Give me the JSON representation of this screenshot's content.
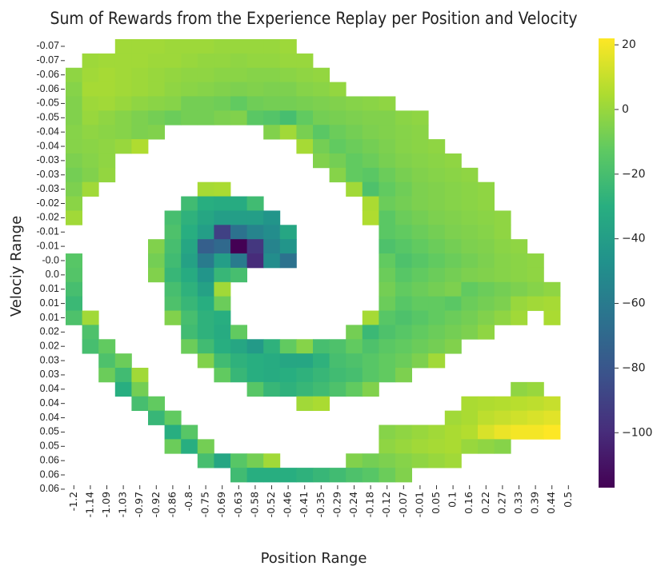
{
  "chart_data": {
    "type": "heatmap",
    "title": "Sum of Rewards from the Experience Replay per Position and Velocity",
    "x_label": "Position Range",
    "y_label": "Velociy Range",
    "x_labels": [
      "-1.2",
      "-1.14",
      "-1.09",
      "-1.03",
      "-0.97",
      "-0.92",
      "-0.86",
      "-0.8",
      "-0.75",
      "-0.69",
      "-0.63",
      "-0.58",
      "-0.52",
      "-0.46",
      "-0.41",
      "-0.35",
      "-0.29",
      "-0.24",
      "-0.18",
      "-0.12",
      "-0.07",
      "-0.01",
      "0.05",
      "0.1",
      "0.16",
      "0.22",
      "0.27",
      "0.33",
      "0.39",
      "0.44",
      "0.5"
    ],
    "y_labels": [
      "-0.07",
      "-0.07",
      "-0.06",
      "-0.06",
      "-0.05",
      "-0.05",
      "-0.04",
      "-0.04",
      "-0.03",
      "-0.03",
      "-0.03",
      "-0.02",
      "-0.02",
      "-0.01",
      "-0.01",
      "-0.0",
      "0.0",
      "0.01",
      "0.01",
      "0.01",
      "0.02",
      "0.02",
      "0.03",
      "0.03",
      "0.04",
      "0.04",
      "0.04",
      "0.05",
      "0.05",
      "0.06",
      "0.06",
      "0.06"
    ],
    "values": [
      [
        null,
        null,
        null,
        2,
        2,
        2,
        1,
        1,
        1,
        0,
        0,
        0,
        0,
        1,
        null,
        null,
        null,
        null,
        null,
        null,
        null,
        null,
        null,
        null,
        null,
        null,
        null,
        null,
        null,
        null
      ],
      [
        null,
        1,
        2,
        2,
        2,
        1,
        1,
        0,
        -1,
        -1,
        -2,
        -1,
        -1,
        0,
        0,
        null,
        null,
        null,
        null,
        null,
        null,
        null,
        null,
        null,
        null,
        null,
        null,
        null,
        null,
        null
      ],
      [
        -2,
        2,
        3,
        2,
        1,
        0,
        -1,
        -2,
        -2,
        -3,
        -3,
        -4,
        -4,
        -3,
        -2,
        -1,
        null,
        null,
        null,
        null,
        null,
        null,
        null,
        null,
        null,
        null,
        null,
        null,
        null,
        null
      ],
      [
        -4,
        3,
        3,
        2,
        1,
        0,
        -2,
        -3,
        -4,
        -5,
        -6,
        -5,
        -6,
        -6,
        -4,
        -3,
        -1,
        null,
        null,
        null,
        null,
        null,
        null,
        null,
        null,
        null,
        null,
        null,
        null,
        null
      ],
      [
        -5,
        1,
        2,
        0,
        -2,
        -3,
        -4,
        -8,
        -8,
        -9,
        -12,
        -9,
        -8,
        -8,
        -7,
        -6,
        -5,
        -4,
        -3,
        -2,
        null,
        null,
        null,
        null,
        null,
        null,
        null,
        null,
        null,
        null
      ],
      [
        -5,
        0,
        -2,
        -4,
        -6,
        -8,
        -10,
        -8,
        -8,
        -6,
        -5,
        -14,
        -16,
        -20,
        -12,
        -8,
        -7,
        -6,
        -5,
        -5,
        -3,
        -2,
        null,
        null,
        null,
        null,
        null,
        null,
        null,
        null
      ],
      [
        -4,
        -2,
        -3,
        -4,
        -6,
        -5,
        null,
        null,
        null,
        null,
        null,
        null,
        -5,
        2,
        -7,
        -14,
        -10,
        -8,
        -6,
        -5,
        -4,
        -3,
        null,
        null,
        null,
        null,
        null,
        null,
        null,
        null
      ],
      [
        -4,
        -3,
        -2,
        0,
        5,
        null,
        null,
        null,
        null,
        null,
        null,
        null,
        null,
        null,
        3,
        -8,
        -12,
        -10,
        -8,
        -6,
        -4,
        -3,
        -2,
        null,
        null,
        null,
        null,
        null,
        null,
        null
      ],
      [
        -6,
        -4,
        -2,
        null,
        null,
        null,
        null,
        null,
        null,
        null,
        null,
        null,
        null,
        null,
        null,
        -5,
        -8,
        -12,
        -10,
        -7,
        -5,
        -4,
        -3,
        -2,
        null,
        null,
        null,
        null,
        null,
        null
      ],
      [
        -8,
        -5,
        -1,
        null,
        null,
        null,
        null,
        null,
        null,
        null,
        null,
        null,
        null,
        null,
        null,
        null,
        -4,
        -12,
        -14,
        -10,
        -7,
        -5,
        -4,
        -3,
        -2,
        null,
        null,
        null,
        null,
        null
      ],
      [
        -6,
        2,
        null,
        null,
        null,
        null,
        null,
        null,
        3,
        4,
        null,
        null,
        null,
        null,
        null,
        null,
        null,
        2,
        -18,
        -12,
        -9,
        -6,
        -5,
        -4,
        -3,
        -2,
        null,
        null,
        null,
        null
      ],
      [
        -3,
        null,
        null,
        null,
        null,
        null,
        null,
        -22,
        -30,
        -32,
        -32,
        -22,
        null,
        null,
        null,
        null,
        null,
        null,
        4,
        -10,
        -8,
        -6,
        -5,
        -4,
        -3,
        -2,
        null,
        null,
        null,
        null
      ],
      [
        2,
        null,
        null,
        null,
        null,
        null,
        -20,
        -28,
        -35,
        -40,
        -40,
        -40,
        -45,
        null,
        null,
        null,
        null,
        null,
        5,
        -14,
        -10,
        -8,
        -6,
        -5,
        -4,
        -3,
        -2,
        null,
        null,
        null
      ],
      [
        null,
        null,
        null,
        null,
        null,
        null,
        -18,
        -30,
        -40,
        -90,
        -65,
        -55,
        -50,
        -35,
        null,
        null,
        null,
        null,
        null,
        -14,
        -12,
        -10,
        -8,
        -6,
        -5,
        -4,
        -2,
        null,
        null,
        null
      ],
      [
        null,
        null,
        null,
        null,
        null,
        -5,
        -20,
        -35,
        -75,
        -70,
        -117,
        -95,
        -55,
        -45,
        null,
        null,
        null,
        null,
        null,
        -18,
        -15,
        -12,
        -10,
        -8,
        -6,
        -5,
        -3,
        -2,
        null,
        null
      ],
      [
        -15,
        null,
        null,
        null,
        null,
        -8,
        -22,
        -38,
        -60,
        -40,
        -60,
        -100,
        -50,
        -65,
        null,
        null,
        null,
        null,
        null,
        -12,
        -18,
        -15,
        -12,
        -10,
        -8,
        -6,
        -4,
        -3,
        -2,
        null
      ],
      [
        -16,
        null,
        null,
        null,
        null,
        -5,
        -25,
        -32,
        -45,
        -25,
        -20,
        null,
        null,
        null,
        null,
        null,
        null,
        null,
        null,
        -10,
        -15,
        -12,
        -10,
        -8,
        -6,
        -5,
        -4,
        -3,
        -2,
        null
      ],
      [
        -20,
        null,
        null,
        null,
        null,
        null,
        -20,
        -28,
        -38,
        2,
        null,
        null,
        null,
        null,
        null,
        null,
        null,
        null,
        null,
        -8,
        -12,
        -10,
        -8,
        -6,
        -12,
        -10,
        -8,
        -6,
        -4,
        -2
      ],
      [
        -24,
        null,
        null,
        null,
        null,
        null,
        -18,
        -25,
        -30,
        -10,
        null,
        null,
        null,
        null,
        null,
        null,
        null,
        null,
        null,
        -10,
        -15,
        -12,
        -12,
        -14,
        -10,
        -8,
        -6,
        0,
        2,
        3
      ],
      [
        -18,
        2,
        null,
        null,
        null,
        null,
        -5,
        -20,
        -28,
        -30,
        null,
        null,
        null,
        null,
        null,
        null,
        null,
        null,
        3,
        -15,
        -18,
        -15,
        -12,
        -10,
        -8,
        -5,
        -2,
        2,
        null,
        4
      ],
      [
        null,
        -18,
        null,
        null,
        null,
        null,
        null,
        -22,
        -28,
        -32,
        -12,
        null,
        null,
        null,
        null,
        null,
        null,
        -8,
        -24,
        -18,
        -15,
        -12,
        -10,
        -8,
        -6,
        -2,
        null,
        null,
        null,
        null
      ],
      [
        null,
        -20,
        -12,
        null,
        null,
        null,
        null,
        -10,
        -22,
        -30,
        -35,
        -42,
        -28,
        -12,
        -4,
        -20,
        -18,
        -12,
        -18,
        -14,
        -12,
        -10,
        -8,
        -5,
        null,
        null,
        null,
        null,
        null,
        null
      ],
      [
        null,
        null,
        -18,
        -10,
        null,
        null,
        null,
        null,
        -5,
        -22,
        -28,
        -30,
        -32,
        -35,
        -35,
        -28,
        -20,
        -18,
        -15,
        -12,
        -10,
        -6,
        2,
        null,
        null,
        null,
        null,
        null,
        null,
        null
      ],
      [
        null,
        null,
        -10,
        -22,
        2,
        null,
        null,
        null,
        null,
        -12,
        -25,
        -30,
        -32,
        -30,
        -28,
        -25,
        -22,
        -20,
        -15,
        -12,
        -6,
        null,
        null,
        null,
        null,
        null,
        null,
        null,
        null,
        null
      ],
      [
        null,
        null,
        null,
        -30,
        -8,
        null,
        null,
        null,
        null,
        null,
        null,
        -15,
        -25,
        -28,
        -25,
        -22,
        -18,
        -12,
        -5,
        null,
        null,
        null,
        null,
        null,
        null,
        null,
        null,
        -2,
        0,
        null
      ],
      [
        null,
        null,
        null,
        null,
        -20,
        -12,
        null,
        null,
        null,
        null,
        null,
        null,
        null,
        null,
        2,
        4,
        null,
        null,
        null,
        null,
        null,
        null,
        null,
        null,
        4,
        5,
        6,
        7,
        8,
        10
      ],
      [
        null,
        null,
        null,
        null,
        null,
        -25,
        -12,
        null,
        null,
        null,
        null,
        null,
        null,
        null,
        null,
        null,
        null,
        null,
        null,
        null,
        null,
        null,
        null,
        2,
        4,
        8,
        10,
        12,
        14,
        16
      ],
      [
        null,
        null,
        null,
        null,
        null,
        null,
        -30,
        -15,
        null,
        null,
        null,
        null,
        null,
        null,
        null,
        null,
        null,
        null,
        null,
        -4,
        -2,
        0,
        2,
        4,
        6,
        14,
        18,
        20,
        20,
        22
      ],
      [
        null,
        null,
        null,
        null,
        null,
        null,
        -10,
        -30,
        -8,
        null,
        null,
        null,
        null,
        null,
        null,
        null,
        null,
        null,
        null,
        -2,
        0,
        2,
        3,
        4,
        0,
        -2,
        -4,
        null,
        null,
        null
      ],
      [
        null,
        null,
        null,
        null,
        null,
        null,
        null,
        null,
        -20,
        -35,
        -15,
        -8,
        2,
        null,
        null,
        null,
        null,
        -5,
        -8,
        -6,
        -4,
        -2,
        0,
        2,
        null,
        null,
        null,
        null,
        null,
        null
      ],
      [
        null,
        null,
        null,
        null,
        null,
        null,
        null,
        null,
        null,
        null,
        -22,
        -30,
        -30,
        -30,
        -28,
        -25,
        -22,
        -18,
        -15,
        -10,
        -5,
        null,
        null,
        null,
        null,
        null,
        null,
        null,
        null,
        null
      ]
    ],
    "colormap": "viridis",
    "clim": [
      -117,
      22
    ],
    "colorbar_ticks": [
      20,
      0,
      {
        "value": -20,
        "label": "−20"
      },
      {
        "value": -40,
        "label": "−40"
      },
      {
        "value": -60,
        "label": "−60"
      },
      {
        "value": -80,
        "label": "−80"
      },
      {
        "value": -100,
        "label": "−100"
      }
    ]
  }
}
